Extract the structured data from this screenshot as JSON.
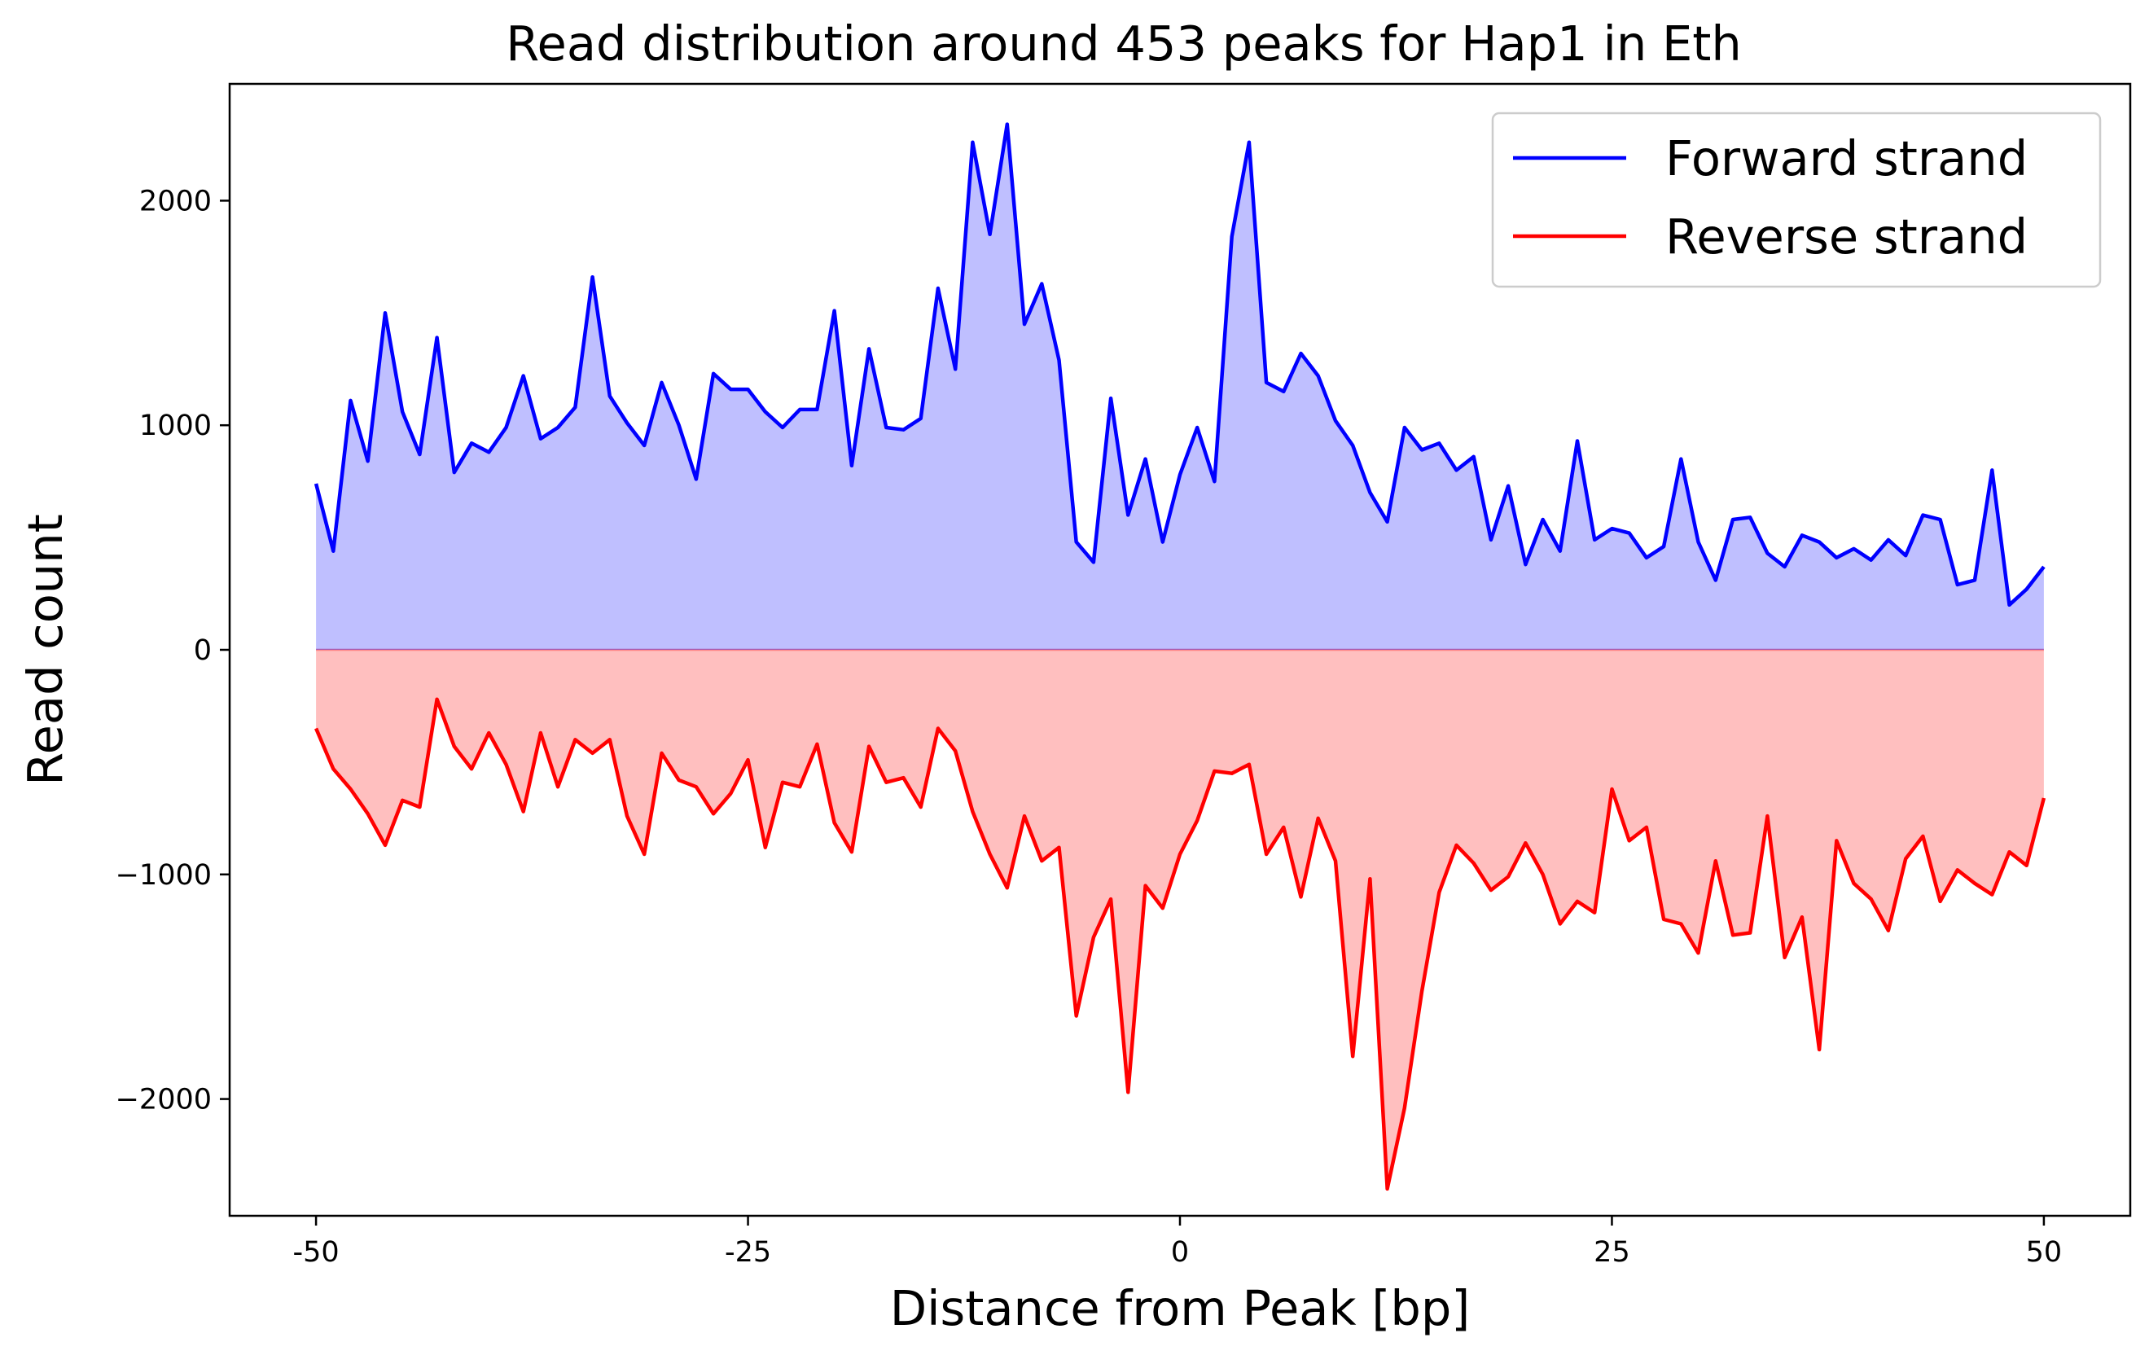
{
  "chart_data": {
    "type": "area",
    "title": "Read distribution around 453 peaks for Hap1 in Eth",
    "xlabel": "Distance from Peak [bp]",
    "ylabel": "Read count",
    "xlim": [
      -55,
      55
    ],
    "ylim": [
      -2520,
      2520
    ],
    "xticks": [
      -50,
      -25,
      0,
      25,
      50
    ],
    "xtick_labels": [
      "-50",
      "-25",
      "0",
      "25",
      "50"
    ],
    "yticks": [
      -2000,
      -1000,
      0,
      1000,
      2000
    ],
    "ytick_labels": [
      "−2000",
      "−1000",
      "0",
      "1000",
      "2000"
    ],
    "grid": false,
    "legend_position": "top-right",
    "colors": {
      "forward": "#0000ff",
      "forward_fill": "#bfbfff",
      "reverse": "#ff0000",
      "reverse_fill": "#ffbfbf"
    },
    "x": [
      -50,
      -49,
      -48,
      -47,
      -46,
      -45,
      -44,
      -43,
      -42,
      -41,
      -40,
      -39,
      -38,
      -37,
      -36,
      -35,
      -34,
      -33,
      -32,
      -31,
      -30,
      -29,
      -28,
      -27,
      -26,
      -25,
      -24,
      -23,
      -22,
      -21,
      -20,
      -19,
      -18,
      -17,
      -16,
      -15,
      -14,
      -13,
      -12,
      -11,
      -10,
      -9,
      -8,
      -7,
      -6,
      -5,
      -4,
      -3,
      -2,
      -1,
      0,
      1,
      2,
      3,
      4,
      5,
      6,
      7,
      8,
      9,
      10,
      11,
      12,
      13,
      14,
      15,
      16,
      17,
      18,
      19,
      20,
      21,
      22,
      23,
      24,
      25,
      26,
      27,
      28,
      29,
      30,
      31,
      32,
      33,
      34,
      35,
      36,
      37,
      38,
      39,
      40,
      41,
      42,
      43,
      44,
      45,
      46,
      47,
      48,
      49,
      50
    ],
    "series": [
      {
        "name": "Forward strand",
        "values": [
          740,
          440,
          1110,
          840,
          1500,
          1060,
          870,
          1390,
          790,
          920,
          880,
          990,
          1220,
          940,
          990,
          1080,
          1660,
          1130,
          1010,
          910,
          1190,
          1000,
          760,
          1230,
          1160,
          1160,
          1060,
          990,
          1070,
          1070,
          1510,
          820,
          1340,
          990,
          980,
          1030,
          1610,
          1250,
          2260,
          1850,
          2340,
          1450,
          1630,
          1290,
          480,
          390,
          1120,
          600,
          850,
          480,
          780,
          990,
          750,
          1840,
          2260,
          1190,
          1150,
          1320,
          1220,
          1020,
          910,
          700,
          570,
          990,
          890,
          920,
          800,
          860,
          490,
          730,
          380,
          580,
          440,
          930,
          490,
          540,
          520,
          410,
          460,
          850,
          480,
          310,
          580,
          590,
          430,
          370,
          510,
          480,
          410,
          450,
          400,
          490,
          420,
          600,
          580,
          290,
          310,
          800,
          200,
          270,
          370
        ]
      },
      {
        "name": "Reverse strand",
        "values": [
          -350,
          -530,
          -620,
          -730,
          -870,
          -670,
          -700,
          -220,
          -430,
          -530,
          -370,
          -510,
          -720,
          -370,
          -610,
          -400,
          -460,
          -400,
          -740,
          -910,
          -460,
          -580,
          -610,
          -730,
          -640,
          -490,
          -880,
          -590,
          -610,
          -420,
          -770,
          -900,
          -430,
          -590,
          -570,
          -700,
          -350,
          -450,
          -720,
          -910,
          -1060,
          -740,
          -940,
          -880,
          -1630,
          -1280,
          -1110,
          -1970,
          -1050,
          -1150,
          -910,
          -760,
          -540,
          -550,
          -510,
          -910,
          -790,
          -1100,
          -750,
          -940,
          -1810,
          -1020,
          -2400,
          -2040,
          -1520,
          -1080,
          -870,
          -950,
          -1070,
          -1010,
          -860,
          -1000,
          -1220,
          -1120,
          -1170,
          -620,
          -850,
          -790,
          -1200,
          -1220,
          -1350,
          -940,
          -1270,
          -1260,
          -740,
          -1370,
          -1190,
          -1780,
          -850,
          -1040,
          -1110,
          -1250,
          -930,
          -830,
          -1120,
          -980,
          -1040,
          -1090,
          -900,
          -960,
          -660
        ]
      }
    ]
  }
}
